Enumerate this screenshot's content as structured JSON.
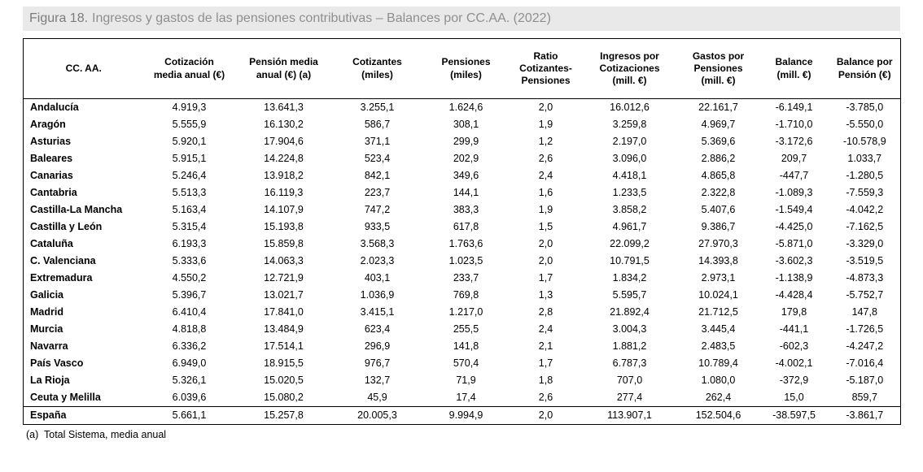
{
  "figure": {
    "label": "Figura 18.",
    "title": "Ingresos y gastos de las pensiones contributivas – Balances por CC.AA. (2022)",
    "footnote": "(a)  Total Sistema, media anual"
  },
  "chart_data": {
    "type": "table",
    "title": "Figura 18. Ingresos y gastos de las pensiones contributivas – Balances por CC.AA. (2022)",
    "columns": [
      "CC. AA.",
      "Cotización\nmedia anual (€)",
      "Pensión media\nanual (€) (a)",
      "Cotizantes\n(miles)",
      "Pensiones\n(miles)",
      "Ratio\nCotizantes-\nPensiones",
      "Ingresos por\nCotizaciones\n(mill. €)",
      "Gastos por\nPensiones\n(mill. €)",
      "Balance\n(mill. €)",
      "Balance por\nPensión (€)"
    ],
    "rows": [
      [
        "Andalucía",
        "4.919,3",
        "13.641,3",
        "3.255,1",
        "1.624,6",
        "2,0",
        "16.012,6",
        "22.161,7",
        "-6.149,1",
        "-3.785,0"
      ],
      [
        "Aragón",
        "5.555,9",
        "16.130,2",
        "586,7",
        "308,1",
        "1,9",
        "3.259,8",
        "4.969,7",
        "-1.710,0",
        "-5.550,0"
      ],
      [
        "Asturias",
        "5.920,1",
        "17.904,6",
        "371,1",
        "299,9",
        "1,2",
        "2.197,0",
        "5.369,6",
        "-3.172,6",
        "-10.578,9"
      ],
      [
        "Baleares",
        "5.915,1",
        "14.224,8",
        "523,4",
        "202,9",
        "2,6",
        "3.096,0",
        "2.886,2",
        "209,7",
        "1.033,7"
      ],
      [
        "Canarias",
        "5.246,4",
        "13.918,2",
        "842,1",
        "349,6",
        "2,4",
        "4.418,1",
        "4.865,8",
        "-447,7",
        "-1.280,5"
      ],
      [
        "Cantabria",
        "5.513,3",
        "16.119,3",
        "223,7",
        "144,1",
        "1,6",
        "1.233,5",
        "2.322,8",
        "-1.089,3",
        "-7.559,3"
      ],
      [
        "Castilla-La Mancha",
        "5.163,4",
        "14.107,9",
        "747,2",
        "383,3",
        "1,9",
        "3.858,2",
        "5.407,6",
        "-1.549,4",
        "-4.042,2"
      ],
      [
        "Castilla y León",
        "5.315,4",
        "15.193,8",
        "933,5",
        "617,8",
        "1,5",
        "4.961,7",
        "9.386,7",
        "-4.425,0",
        "-7.162,5"
      ],
      [
        "Cataluña",
        "6.193,3",
        "15.859,8",
        "3.568,3",
        "1.763,6",
        "2,0",
        "22.099,2",
        "27.970,3",
        "-5.871,0",
        "-3.329,0"
      ],
      [
        "C. Valenciana",
        "5.333,6",
        "14.063,3",
        "2.023,3",
        "1.023,5",
        "2,0",
        "10.791,5",
        "14.393,8",
        "-3.602,3",
        "-3.519,5"
      ],
      [
        "Extremadura",
        "4.550,2",
        "12.721,9",
        "403,1",
        "233,7",
        "1,7",
        "1.834,2",
        "2.973,1",
        "-1.138,9",
        "-4.873,3"
      ],
      [
        "Galicia",
        "5.396,7",
        "13.021,7",
        "1.036,9",
        "769,8",
        "1,3",
        "5.595,7",
        "10.024,1",
        "-4.428,4",
        "-5.752,7"
      ],
      [
        "Madrid",
        "6.410,4",
        "17.841,0",
        "3.415,1",
        "1.217,0",
        "2,8",
        "21.892,4",
        "21.712,5",
        "179,8",
        "147,8"
      ],
      [
        "Murcia",
        "4.818,8",
        "13.484,9",
        "623,4",
        "255,5",
        "2,4",
        "3.004,3",
        "3.445,4",
        "-441,1",
        "-1.726,5"
      ],
      [
        "Navarra",
        "6.336,2",
        "17.514,1",
        "296,9",
        "141,8",
        "2,1",
        "1.881,2",
        "2.483,5",
        "-602,3",
        "-4.247,2"
      ],
      [
        "País Vasco",
        "6.949,0",
        "18.915,5",
        "976,7",
        "570,4",
        "1,7",
        "6.787,3",
        "10.789,4",
        "-4.002,1",
        "-7.016,4"
      ],
      [
        "La Rioja",
        "5.326,1",
        "15.020,5",
        "132,7",
        "71,9",
        "1,8",
        "707,0",
        "1.080,0",
        "-372,9",
        "-5.187,0"
      ],
      [
        "Ceuta y Melilla",
        "6.039,6",
        "15.080,2",
        "45,9",
        "17,4",
        "2,6",
        "277,4",
        "262,4",
        "15,0",
        "859,7"
      ]
    ],
    "total_row": [
      "España",
      "5.661,1",
      "15.257,8",
      "20.005,3",
      "9.994,9",
      "2,0",
      "113.907,1",
      "152.504,6",
      "-38.597,5",
      "-3.861,7"
    ],
    "footnote": "(a) Total Sistema, media anual"
  }
}
